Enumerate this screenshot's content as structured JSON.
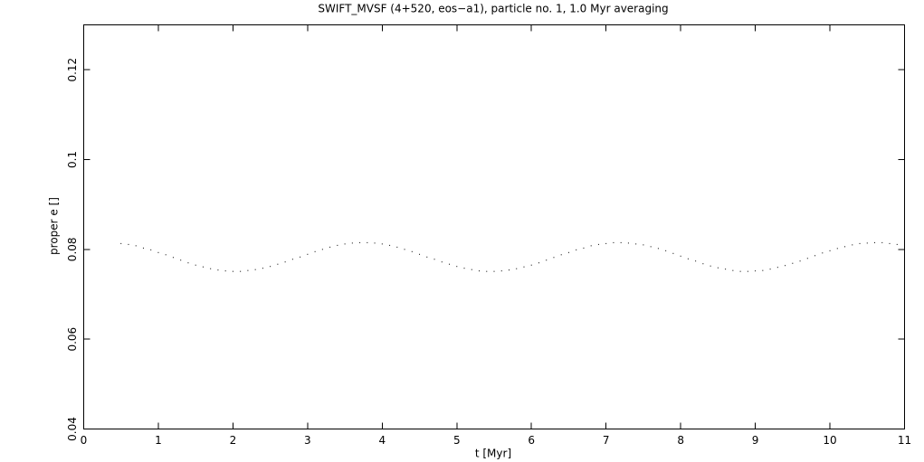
{
  "chart_data": {
    "type": "scatter",
    "title": "SWIFT_MVSF (4+520, eos−a1), particle no. 1, 1.0 Myr averaging",
    "xlabel": "t [Myr]",
    "ylabel": "proper e []",
    "xlim": [
      0,
      11
    ],
    "ylim": [
      0.04,
      0.13
    ],
    "xticks": [
      0,
      1,
      2,
      3,
      4,
      5,
      6,
      7,
      8,
      9,
      10,
      11
    ],
    "yticks": [
      0.04,
      0.06,
      0.08,
      0.1,
      0.12
    ],
    "color": "#000000",
    "x": [
      0.5,
      0.6,
      0.7,
      0.8,
      0.9,
      1.0,
      1.1,
      1.2,
      1.3,
      1.4,
      1.5,
      1.6,
      1.7,
      1.8,
      1.9,
      2.0,
      2.1,
      2.2,
      2.3,
      2.4,
      2.5,
      2.6,
      2.7,
      2.8,
      2.9,
      3.0,
      3.1,
      3.2,
      3.3,
      3.4,
      3.5,
      3.6,
      3.7,
      3.8,
      3.9,
      4.0,
      4.1,
      4.2,
      4.3,
      4.4,
      4.5,
      4.6,
      4.7,
      4.8,
      4.9,
      5.0,
      5.1,
      5.2,
      5.3,
      5.4,
      5.5,
      5.6,
      5.7,
      5.8,
      5.9,
      6.0,
      6.1,
      6.2,
      6.3,
      6.4,
      6.5,
      6.6,
      6.7,
      6.8,
      6.9,
      7.0,
      7.1,
      7.2,
      7.3,
      7.4,
      7.5,
      7.6,
      7.7,
      7.8,
      7.9,
      8.0,
      8.1,
      8.2,
      8.3,
      8.4,
      8.5,
      8.6,
      8.7,
      8.8,
      8.9,
      9.0,
      9.1,
      9.2,
      9.3,
      9.4,
      9.5,
      9.6,
      9.7,
      9.8,
      9.9,
      10.0,
      10.1,
      10.2,
      10.3,
      10.4,
      10.5,
      10.6,
      10.7,
      10.8,
      10.9
    ],
    "values": [
      0.0813,
      0.0811,
      0.0808,
      0.0803,
      0.0799,
      0.0793,
      0.0788,
      0.0782,
      0.0776,
      0.077,
      0.0765,
      0.0761,
      0.0757,
      0.0754,
      0.0752,
      0.0751,
      0.0751,
      0.0753,
      0.0755,
      0.0758,
      0.0762,
      0.0767,
      0.0772,
      0.0778,
      0.0783,
      0.0789,
      0.0795,
      0.08,
      0.0805,
      0.0809,
      0.0812,
      0.0814,
      0.0815,
      0.0815,
      0.0814,
      0.0812,
      0.0809,
      0.0805,
      0.08,
      0.0795,
      0.0789,
      0.0783,
      0.0778,
      0.0772,
      0.0767,
      0.0762,
      0.0758,
      0.0755,
      0.0752,
      0.0751,
      0.0751,
      0.0752,
      0.0754,
      0.0757,
      0.0761,
      0.0765,
      0.077,
      0.0776,
      0.0782,
      0.0788,
      0.0793,
      0.0799,
      0.0803,
      0.0808,
      0.0811,
      0.0813,
      0.0815,
      0.0815,
      0.0814,
      0.0812,
      0.081,
      0.0806,
      0.0802,
      0.0797,
      0.0791,
      0.0785,
      0.0779,
      0.0774,
      0.0768,
      0.0763,
      0.0759,
      0.0756,
      0.0753,
      0.0751,
      0.0751,
      0.0752,
      0.0753,
      0.0756,
      0.076,
      0.0764,
      0.0769,
      0.0774,
      0.078,
      0.0786,
      0.0792,
      0.0797,
      0.0802,
      0.0806,
      0.081,
      0.0813,
      0.0814,
      0.0815,
      0.0815,
      0.0813,
      0.0811
    ]
  }
}
